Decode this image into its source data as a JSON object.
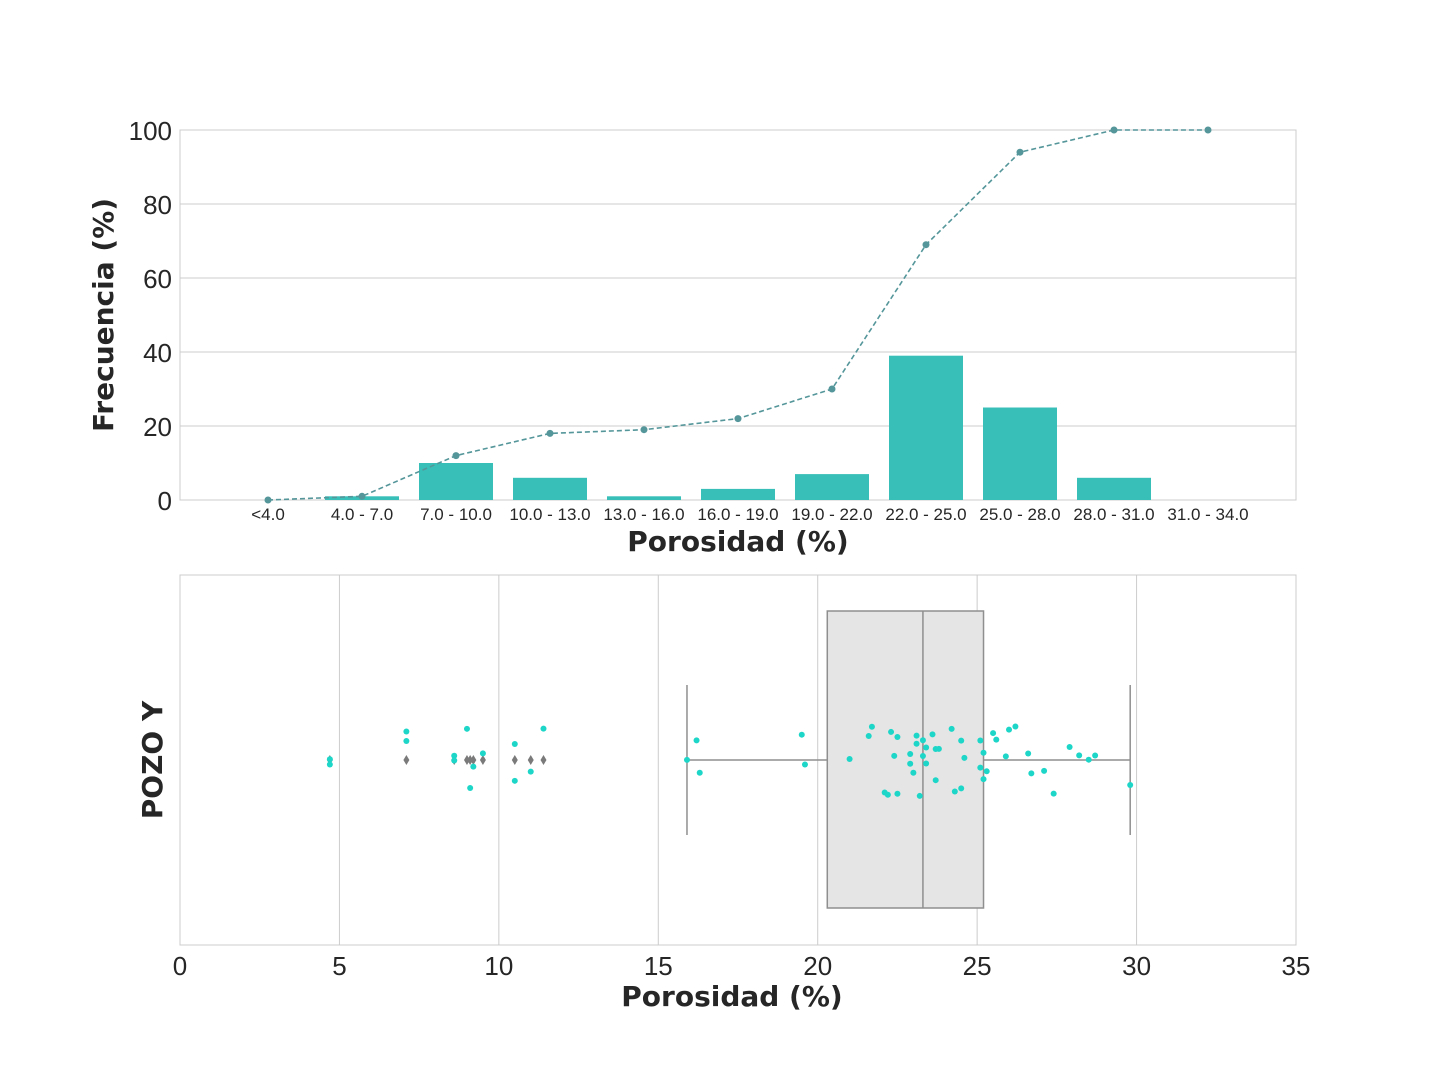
{
  "chart_data": [
    {
      "type": "bar",
      "categories": [
        "<4.0",
        "4.0 - 7.0",
        "7.0 - 10.0",
        "10.0 - 13.0",
        "13.0 - 16.0",
        "16.0 - 19.0",
        "19.0 - 22.0",
        "22.0 - 25.0",
        "25.0 - 28.0",
        "28.0 - 31.0",
        "31.0 - 34.0"
      ],
      "series": [
        {
          "kind": "bar",
          "values": [
            0,
            1,
            10,
            6,
            1,
            3,
            7,
            39,
            25,
            6,
            0
          ]
        },
        {
          "kind": "line",
          "values": [
            0,
            1,
            12,
            18,
            19,
            22,
            30,
            69,
            94,
            100,
            100
          ]
        }
      ],
      "xlabel": "Porosidad (%)",
      "ylabel": "Frecuencia (%)",
      "ylim": [
        0,
        100
      ],
      "yticks": [
        0,
        20,
        40,
        60,
        80,
        100
      ],
      "grid": true,
      "colors": {
        "bar": "#38bfb8",
        "line": "#54969a"
      }
    },
    {
      "type": "scatter",
      "subtype": "boxplot-with-strip",
      "ylabel": "POZO Y",
      "xlabel": "Porosidad (%)",
      "xlim": [
        0,
        35
      ],
      "xticks": [
        0,
        5,
        10,
        15,
        20,
        25,
        30,
        35
      ],
      "grid": true,
      "box": {
        "whisker_low": 15.9,
        "q1": 20.3,
        "median": 23.3,
        "q3": 25.2,
        "whisker_high": 29.8
      },
      "outliers": [
        4.7,
        7.1,
        8.6,
        9.0,
        9.1,
        9.2,
        9.5,
        10.5,
        11.0,
        11.4
      ],
      "points": [
        4.7,
        4.7,
        7.1,
        7.1,
        8.6,
        8.6,
        9.0,
        9.1,
        9.2,
        9.5,
        10.5,
        10.5,
        11.0,
        11.4,
        15.9,
        16.2,
        16.3,
        19.5,
        19.6,
        21.0,
        21.6,
        21.7,
        22.1,
        22.2,
        22.3,
        22.4,
        22.5,
        22.5,
        22.9,
        22.9,
        23.0,
        23.1,
        23.1,
        23.2,
        23.3,
        23.3,
        23.4,
        23.4,
        23.6,
        23.7,
        23.7,
        23.8,
        24.2,
        24.3,
        24.5,
        24.5,
        24.6,
        25.1,
        25.1,
        25.2,
        25.2,
        25.3,
        25.5,
        25.6,
        25.9,
        26.0,
        26.2,
        26.6,
        26.7,
        27.1,
        27.4,
        27.9,
        28.2,
        28.5,
        28.7,
        29.8
      ],
      "colors": {
        "points": "#1dd6c8",
        "box": "#e5e5e5",
        "box_edge": "#8f8f8f",
        "outlier": "#7a7a7a"
      }
    }
  ]
}
